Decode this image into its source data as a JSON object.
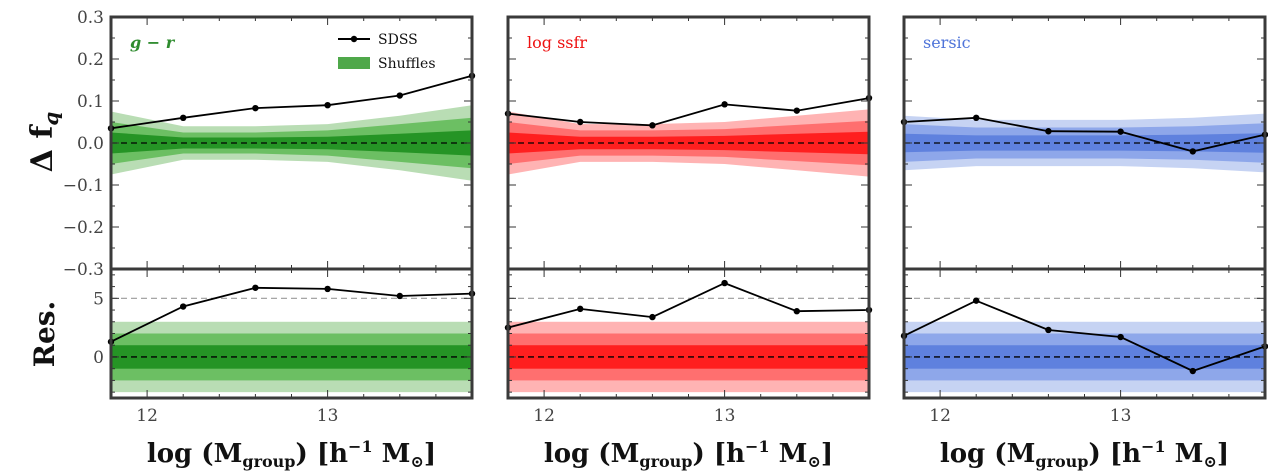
{
  "figure": {
    "ylabel_top": "Δ f",
    "ylabel_top_sub": "q",
    "ylabel_bottom": "Res.",
    "xlabel_main": "log (M",
    "xlabel_sub": "group",
    "xlabel_tail": ") [h",
    "xlabel_sup": "−1",
    "xlabel_end": " M",
    "xlabel_sun": "⊙",
    "xlabel_close": "]",
    "top_yticks": [
      "0.3",
      "0.2",
      "0.1",
      "0.0",
      "−0.1",
      "−0.2",
      "−0.3"
    ],
    "bottom_yticks": [
      "5",
      "0"
    ],
    "xticks": [
      "12",
      "13"
    ],
    "legend": {
      "sdss": "SDSS",
      "shuffles": "Shuffles"
    }
  },
  "chart_data": [
    {
      "type": "line",
      "title": "g − r",
      "color": "#2e8b2e",
      "band_colors": [
        "#b9ddb4",
        "#6cbf63",
        "#259425"
      ],
      "x": [
        11.8,
        12.2,
        12.6,
        13.0,
        13.4,
        13.8
      ],
      "top": {
        "ylim": [
          -0.3,
          0.3
        ],
        "series": [
          {
            "name": "SDSS",
            "values": [
              0.035,
              0.06,
              0.083,
              0.09,
              0.113,
              0.16
            ]
          }
        ],
        "bands_3sigma": [
          0.075,
          0.04,
          0.04,
          0.045,
          0.065,
          0.09
        ],
        "bands_2sigma": [
          0.05,
          0.025,
          0.025,
          0.03,
          0.045,
          0.06
        ],
        "bands_1sigma": [
          0.025,
          0.013,
          0.013,
          0.015,
          0.022,
          0.03
        ]
      },
      "bottom": {
        "ylim": [
          -3.5,
          7.5
        ],
        "series": [
          {
            "name": "SDSS",
            "values": [
              1.3,
              4.3,
              5.9,
              5.8,
              5.2,
              5.4
            ]
          }
        ],
        "reference_line": 5
      }
    },
    {
      "type": "line",
      "title": "log ssfr",
      "color": "#ee1111",
      "band_colors": [
        "#ffb3b3",
        "#ff6f6f",
        "#ff1f1f"
      ],
      "x": [
        11.8,
        12.2,
        12.6,
        13.0,
        13.4,
        13.8
      ],
      "top": {
        "ylim": [
          -0.3,
          0.3
        ],
        "series": [
          {
            "name": "SDSS",
            "values": [
              0.07,
              0.05,
              0.042,
              0.092,
              0.077,
              0.107
            ]
          }
        ],
        "bands_3sigma": [
          0.075,
          0.045,
          0.045,
          0.05,
          0.065,
          0.08
        ],
        "bands_2sigma": [
          0.05,
          0.03,
          0.03,
          0.033,
          0.043,
          0.053
        ],
        "bands_1sigma": [
          0.025,
          0.015,
          0.015,
          0.017,
          0.022,
          0.027
        ]
      },
      "bottom": {
        "ylim": [
          -3.5,
          7.5
        ],
        "series": [
          {
            "name": "SDSS",
            "values": [
              2.5,
              4.1,
              3.4,
              6.3,
              3.9,
              4.0
            ]
          }
        ],
        "reference_line": 5
      }
    },
    {
      "type": "line",
      "title": "sersic",
      "color": "#4f74d9",
      "band_colors": [
        "#c6d3f3",
        "#8ea7ea",
        "#5f81de"
      ],
      "x": [
        11.8,
        12.2,
        12.6,
        13.0,
        13.4,
        13.8
      ],
      "top": {
        "ylim": [
          -0.3,
          0.3
        ],
        "series": [
          {
            "name": "SDSS",
            "values": [
              0.05,
              0.06,
              0.028,
              0.027,
              -0.02,
              0.02
            ]
          }
        ],
        "bands_3sigma": [
          0.065,
          0.055,
          0.055,
          0.055,
          0.06,
          0.07
        ],
        "bands_2sigma": [
          0.045,
          0.037,
          0.037,
          0.037,
          0.04,
          0.047
        ],
        "bands_1sigma": [
          0.022,
          0.018,
          0.018,
          0.018,
          0.02,
          0.023
        ]
      },
      "bottom": {
        "ylim": [
          -3.5,
          7.5
        ],
        "series": [
          {
            "name": "SDSS",
            "values": [
              1.8,
              4.8,
              2.3,
              1.7,
              -1.2,
              0.9
            ]
          }
        ],
        "reference_line": 5
      }
    }
  ]
}
